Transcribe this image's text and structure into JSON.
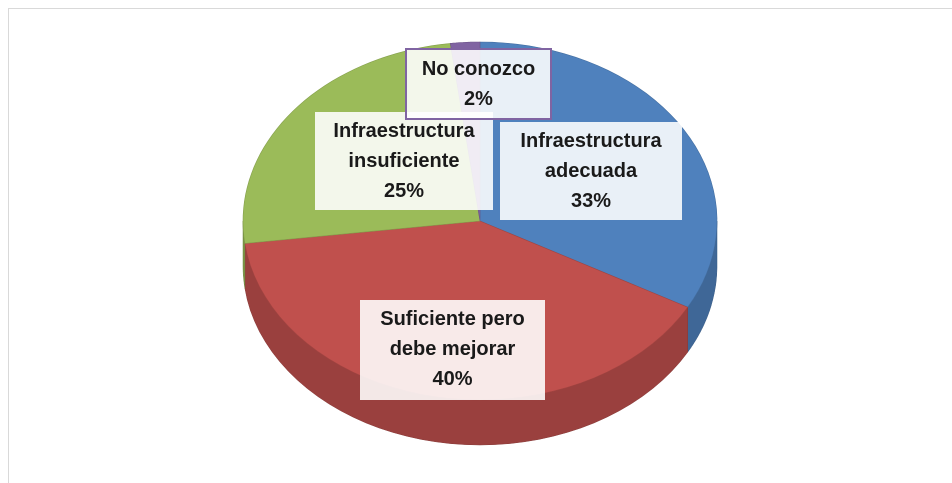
{
  "chart_data": {
    "type": "pie3d",
    "categories": [
      "Infraestructura adecuada",
      "Suficiente pero debe mejorar",
      "Infraestructura insuficiente",
      "No conozco"
    ],
    "values": [
      33,
      40,
      25,
      2
    ],
    "value_labels": [
      "33%",
      "40%",
      "25%",
      "2%"
    ],
    "colors": [
      "#4f81bd",
      "#c0504d",
      "#9bbb59",
      "#8064a2"
    ]
  }
}
